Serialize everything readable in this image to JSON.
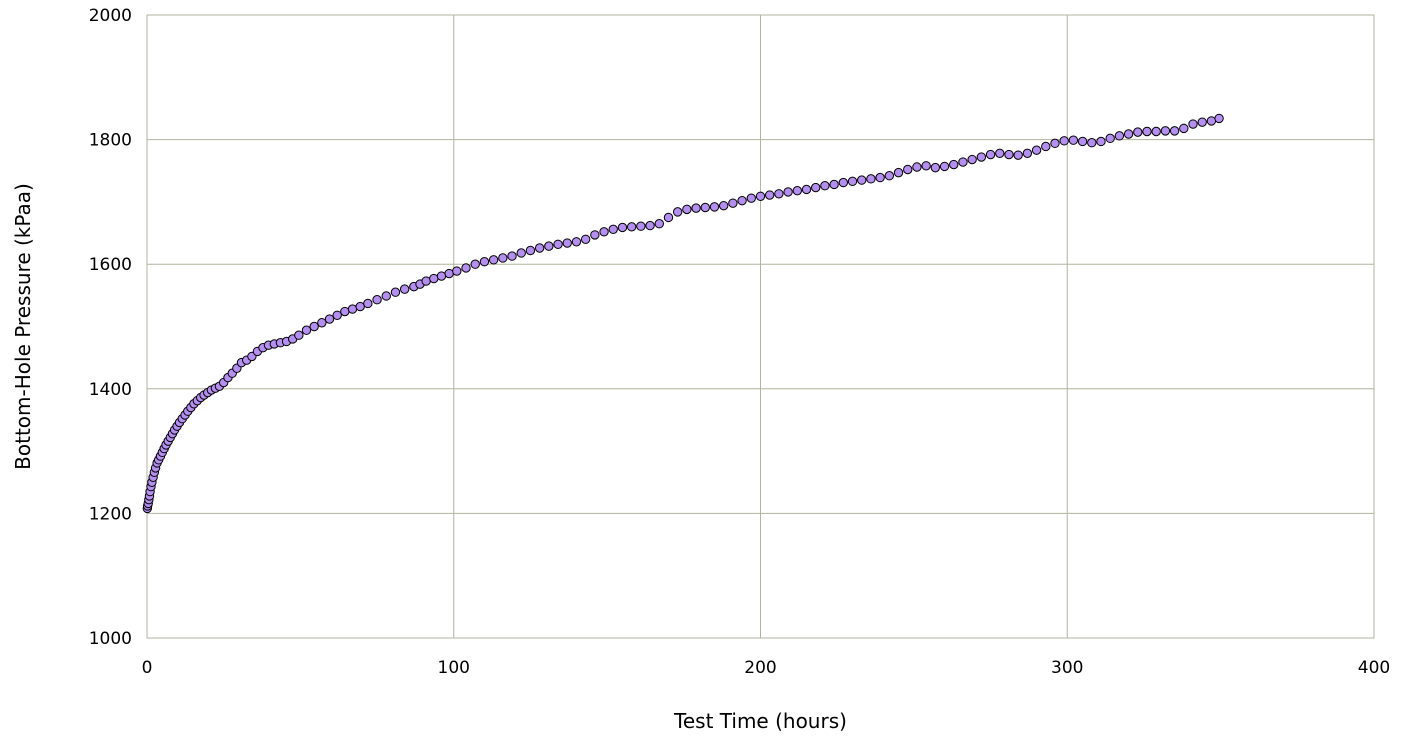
{
  "chart_data": {
    "type": "scatter",
    "title": "",
    "xlabel": "Test Time (hours)",
    "ylabel": "Bottom-Hole Pressure (kPaa)",
    "xlim": [
      0,
      400
    ],
    "ylim": [
      1000,
      2000
    ],
    "x_ticks": [
      0,
      100,
      200,
      300,
      400
    ],
    "y_ticks": [
      1000,
      1200,
      1400,
      1600,
      1800,
      2000
    ],
    "x_tick_labels": [
      "0",
      "100",
      "200",
      "300",
      "400"
    ],
    "y_tick_labels": [
      "1000",
      "1200",
      "1400",
      "1600",
      "1800",
      "2000"
    ],
    "grid": true,
    "legend": "none",
    "marker_color": "#b58ff0",
    "marker_edge_color": "#000000",
    "grid_color": "#b3b39f",
    "series": [
      {
        "points": [
          [
            0.1,
            1208
          ],
          [
            0.2,
            1212
          ],
          [
            0.4,
            1216
          ],
          [
            0.6,
            1222
          ],
          [
            0.8,
            1228
          ],
          [
            1.0,
            1235
          ],
          [
            1.3,
            1243
          ],
          [
            1.6,
            1250
          ],
          [
            2.0,
            1258
          ],
          [
            2.4,
            1266
          ],
          [
            2.8,
            1273
          ],
          [
            3.3,
            1281
          ],
          [
            3.8,
            1286
          ],
          [
            4.4,
            1292
          ],
          [
            5.0,
            1298
          ],
          [
            5.6,
            1304
          ],
          [
            6.2,
            1310
          ],
          [
            6.9,
            1316
          ],
          [
            7.6,
            1322
          ],
          [
            8.3,
            1328
          ],
          [
            9.0,
            1334
          ],
          [
            9.8,
            1340
          ],
          [
            10.6,
            1346
          ],
          [
            11.5,
            1352
          ],
          [
            12.4,
            1358
          ],
          [
            13.3,
            1364
          ],
          [
            14.3,
            1370
          ],
          [
            15.3,
            1376
          ],
          [
            16.4,
            1381
          ],
          [
            17.5,
            1386
          ],
          [
            18.6,
            1390
          ],
          [
            19.8,
            1394
          ],
          [
            21.0,
            1398
          ],
          [
            22.3,
            1401
          ],
          [
            23.6,
            1404
          ],
          [
            25.0,
            1410
          ],
          [
            26.4,
            1418
          ],
          [
            27.8,
            1425
          ],
          [
            29.3,
            1433
          ],
          [
            30.8,
            1442
          ],
          [
            32.5,
            1446
          ],
          [
            34.2,
            1452
          ],
          [
            36.0,
            1460
          ],
          [
            37.8,
            1466
          ],
          [
            39.6,
            1470
          ],
          [
            41.5,
            1472
          ],
          [
            43.5,
            1474
          ],
          [
            45.5,
            1476
          ],
          [
            47.5,
            1480
          ],
          [
            49.5,
            1486
          ],
          [
            52.0,
            1494
          ],
          [
            54.5,
            1500
          ],
          [
            57.0,
            1506
          ],
          [
            59.5,
            1512
          ],
          [
            62.0,
            1518
          ],
          [
            64.5,
            1524
          ],
          [
            67.0,
            1528
          ],
          [
            69.5,
            1532
          ],
          [
            72.0,
            1537
          ],
          [
            75.0,
            1543
          ],
          [
            78.0,
            1549
          ],
          [
            81.0,
            1555
          ],
          [
            84.0,
            1560
          ],
          [
            87.0,
            1564
          ],
          [
            89.0,
            1568
          ],
          [
            91.0,
            1573
          ],
          [
            93.5,
            1577
          ],
          [
            96.0,
            1581
          ],
          [
            98.5,
            1585
          ],
          [
            101.0,
            1589
          ],
          [
            104.0,
            1594
          ],
          [
            107.0,
            1600
          ],
          [
            110.0,
            1604
          ],
          [
            113.0,
            1607
          ],
          [
            116.0,
            1610
          ],
          [
            119.0,
            1613
          ],
          [
            122.0,
            1618
          ],
          [
            125.0,
            1622
          ],
          [
            128.0,
            1626
          ],
          [
            131.0,
            1629
          ],
          [
            134.0,
            1632
          ],
          [
            137.0,
            1634
          ],
          [
            140.0,
            1636
          ],
          [
            143.0,
            1640
          ],
          [
            146.0,
            1647
          ],
          [
            149.0,
            1652
          ],
          [
            152.0,
            1656
          ],
          [
            155.0,
            1659
          ],
          [
            158.0,
            1660
          ],
          [
            161.0,
            1661
          ],
          [
            164.0,
            1662
          ],
          [
            167.0,
            1665
          ],
          [
            170.0,
            1675
          ],
          [
            173.0,
            1684
          ],
          [
            176.0,
            1688
          ],
          [
            179.0,
            1690
          ],
          [
            182.0,
            1691
          ],
          [
            185.0,
            1692
          ],
          [
            188.0,
            1694
          ],
          [
            191.0,
            1698
          ],
          [
            194.0,
            1702
          ],
          [
            197.0,
            1706
          ],
          [
            200.0,
            1709
          ],
          [
            203.0,
            1711
          ],
          [
            206.0,
            1713
          ],
          [
            209.0,
            1716
          ],
          [
            212.0,
            1718
          ],
          [
            215.0,
            1720
          ],
          [
            218.0,
            1723
          ],
          [
            221.0,
            1726
          ],
          [
            224.0,
            1728
          ],
          [
            227.0,
            1731
          ],
          [
            230.0,
            1733
          ],
          [
            233.0,
            1735
          ],
          [
            236.0,
            1737
          ],
          [
            239.0,
            1739
          ],
          [
            242.0,
            1742
          ],
          [
            245.0,
            1747
          ],
          [
            248.0,
            1752
          ],
          [
            251.0,
            1756
          ],
          [
            254.0,
            1758
          ],
          [
            257.0,
            1755
          ],
          [
            260.0,
            1757
          ],
          [
            263.0,
            1760
          ],
          [
            266.0,
            1764
          ],
          [
            269.0,
            1768
          ],
          [
            272.0,
            1772
          ],
          [
            275.0,
            1776
          ],
          [
            278.0,
            1778
          ],
          [
            281.0,
            1776
          ],
          [
            284.0,
            1775
          ],
          [
            287.0,
            1778
          ],
          [
            290.0,
            1783
          ],
          [
            293.0,
            1789
          ],
          [
            296.0,
            1794
          ],
          [
            299.0,
            1798
          ],
          [
            302.0,
            1799
          ],
          [
            305.0,
            1797
          ],
          [
            308.0,
            1795
          ],
          [
            311.0,
            1797
          ],
          [
            314.0,
            1802
          ],
          [
            317.0,
            1806
          ],
          [
            320.0,
            1809
          ],
          [
            323.0,
            1812
          ],
          [
            326.0,
            1813
          ],
          [
            329.0,
            1813
          ],
          [
            332.0,
            1814
          ],
          [
            335.0,
            1814
          ],
          [
            338.0,
            1818
          ],
          [
            341.0,
            1825
          ],
          [
            344.0,
            1828
          ],
          [
            347.0,
            1830
          ],
          [
            349.5,
            1834
          ]
        ]
      }
    ]
  }
}
